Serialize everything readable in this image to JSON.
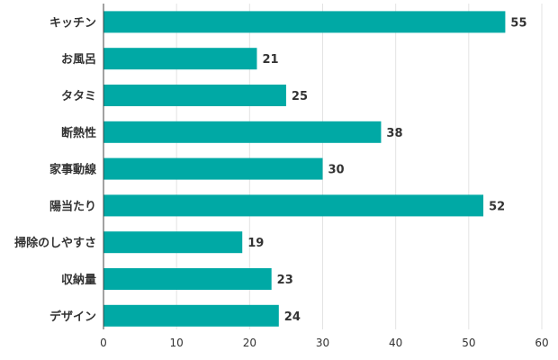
{
  "chart_data": {
    "type": "bar",
    "orientation": "horizontal",
    "categories": [
      "キッチン",
      "お風呂",
      "タタミ",
      "断熱性",
      "家事動線",
      "陽当たり",
      "掃除のしやすさ",
      "収納量",
      "デザイン"
    ],
    "values": [
      55,
      21,
      25,
      38,
      30,
      52,
      19,
      23,
      24
    ],
    "xlim": [
      0,
      60
    ],
    "xticks": [
      0,
      10,
      20,
      30,
      40,
      50,
      60
    ],
    "grid": true,
    "data_labels": true,
    "bar_color": "#00a9a5"
  }
}
